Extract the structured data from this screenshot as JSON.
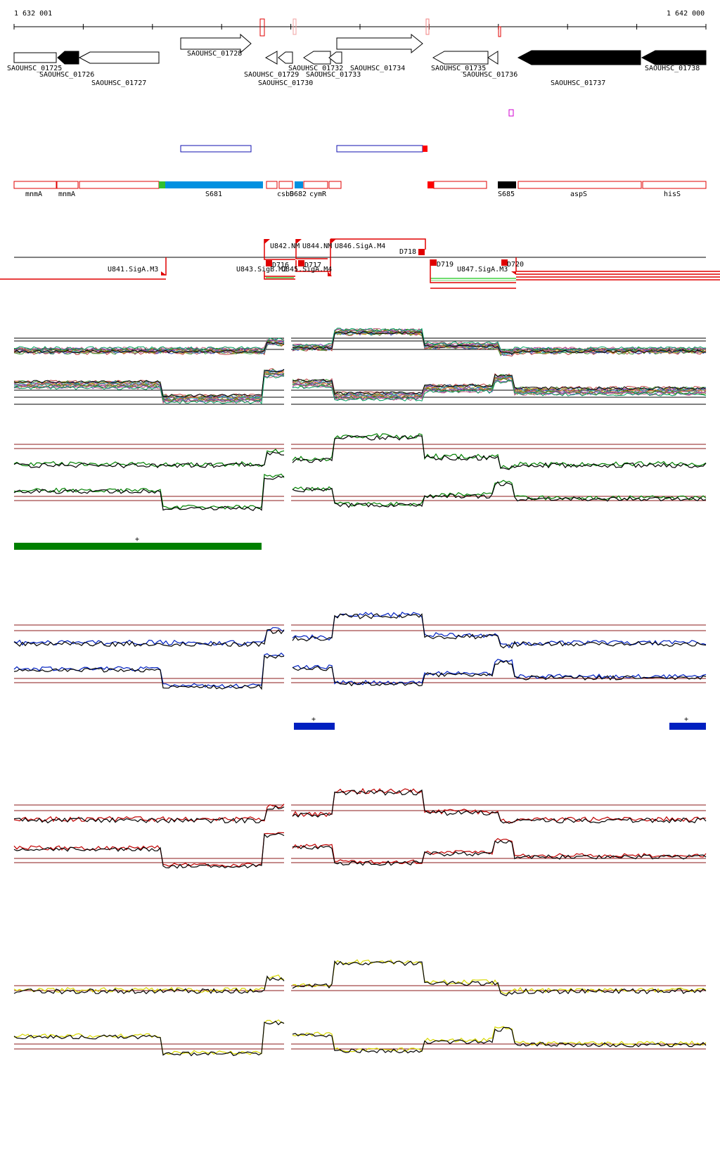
{
  "ruler": {
    "start_label": "1 632 001",
    "end_label": "1 642 000"
  },
  "genes": [
    {
      "label": "SAOUHSC_01725",
      "strand": "+",
      "filled": false
    },
    {
      "label": "SAOUHSC_01726",
      "strand": "-",
      "filled": true
    },
    {
      "label": "SAOUHSC_01727",
      "strand": "-",
      "filled": false
    },
    {
      "label": "SAOUHSC_01728",
      "strand": "+",
      "filled": false
    },
    {
      "label": "SAOUHSC_01729",
      "strand": "-",
      "filled": false
    },
    {
      "label": "SAOUHSC_01730",
      "strand": "-",
      "filled": false
    },
    {
      "label": "SAOUHSC_01732",
      "strand": "-",
      "filled": false
    },
    {
      "label": "SAOUHSC_01733",
      "strand": "-",
      "filled": false
    },
    {
      "label": "SAOUHSC_01734",
      "strand": "+",
      "filled": false
    },
    {
      "label": "SAOUHSC_01735",
      "strand": "-",
      "filled": false
    },
    {
      "label": "SAOUHSC_01736",
      "strand": "-",
      "filled": false
    },
    {
      "label": "SAOUHSC_01737",
      "strand": "-",
      "filled": true
    },
    {
      "label": "SAOUHSC_01738",
      "strand": "-",
      "filled": true
    }
  ],
  "segments": [
    {
      "label": "mnmA"
    },
    {
      "label": "mnmA"
    },
    {
      "label": "S681"
    },
    {
      "label": "csbD"
    },
    {
      "label": "S682"
    },
    {
      "label": "cymR"
    },
    {
      "label": "S685"
    },
    {
      "label": "aspS"
    },
    {
      "label": "hisS"
    }
  ],
  "tus": [
    {
      "label": "U841.SigA.M3"
    },
    {
      "label": "U842.NM"
    },
    {
      "label": "U843.SigB.M2"
    },
    {
      "label": "U844.NM"
    },
    {
      "label": "U845.SigA.M4"
    },
    {
      "label": "U846.SigA.M4"
    },
    {
      "label": "U847.SigA.M3"
    }
  ],
  "downshifts": [
    {
      "label": "D716"
    },
    {
      "label": "D717"
    },
    {
      "label": "D718"
    },
    {
      "label": "D719"
    },
    {
      "label": "D720"
    }
  ],
  "tracks": [
    {
      "color": "#008000",
      "features": [
        {
          "strand_label": "+"
        }
      ]
    },
    {
      "color": "#0020c0",
      "features": [
        {
          "strand_label": "+"
        },
        {
          "strand_label": "+"
        }
      ]
    },
    {
      "color": "#c00000",
      "features": []
    },
    {
      "color": "#d8d800",
      "features": []
    }
  ],
  "colors": {
    "outline_red": "#e00000",
    "segment_blue": "#0090e0",
    "region_blue": "#1010b0",
    "magenta": "#d000d0",
    "green_mark": "#30c030",
    "threshold": "#8b1a1a"
  }
}
